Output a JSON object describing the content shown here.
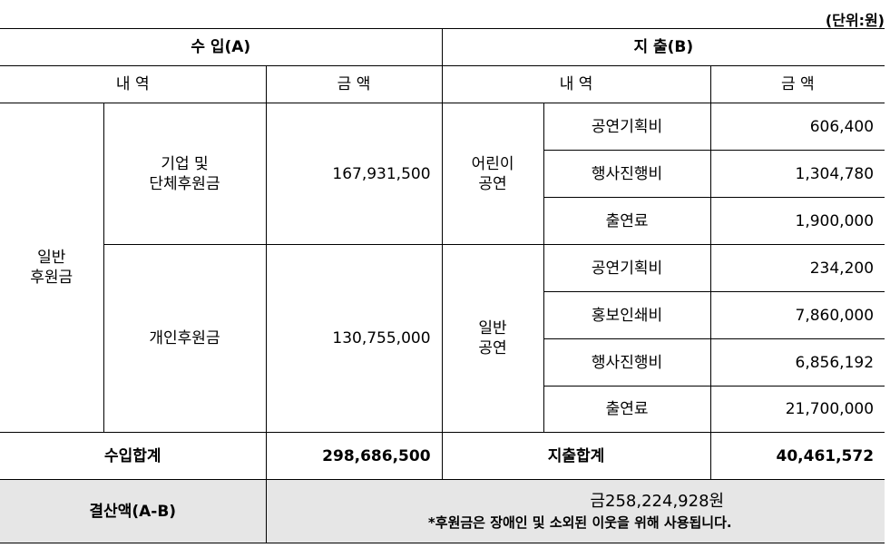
{
  "unit": "(단위:원)",
  "income": {
    "title": "수 입(A)",
    "col_item": "내 역",
    "col_amount": "금 액",
    "category": "일반\n후원금",
    "rows": [
      {
        "label": "기업 및\n단체후원금",
        "amount": "167,931,500"
      },
      {
        "label": "개인후원금",
        "amount": "130,755,000"
      }
    ],
    "total_label": "수입합계",
    "total": "298,686,500"
  },
  "expense": {
    "title": "지 출(B)",
    "col_item": "내 역",
    "col_amount": "금 액",
    "groups": [
      {
        "label": "어린이\n공연",
        "items": [
          {
            "label": "공연기획비",
            "amount": "606,400"
          },
          {
            "label": "행사진행비",
            "amount": "1,304,780"
          },
          {
            "label": "출연료",
            "amount": "1,900,000"
          }
        ]
      },
      {
        "label": "일반\n공연",
        "items": [
          {
            "label": "공연기획비",
            "amount": "234,200"
          },
          {
            "label": "홍보인쇄비",
            "amount": "7,860,000"
          },
          {
            "label": "행사진행비",
            "amount": "6,856,192"
          },
          {
            "label": "출연료",
            "amount": "21,700,000"
          }
        ]
      }
    ],
    "total_label": "지출합계",
    "total": "40,461,572"
  },
  "balance": {
    "label": "결산액(A-B)",
    "value": "금258,224,928원",
    "note": "*후원금은 장애인 및 소외된 이웃을 위해 사용됩니다."
  }
}
